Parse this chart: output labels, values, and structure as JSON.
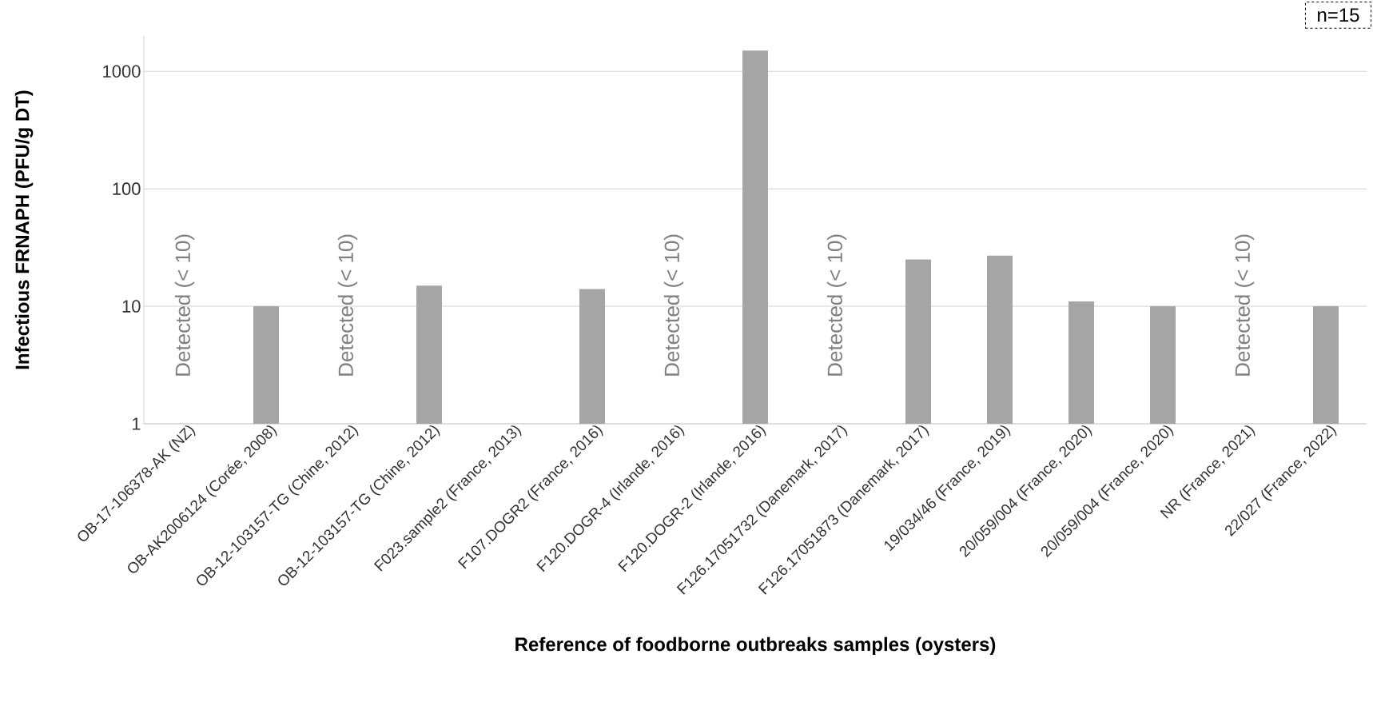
{
  "chart_data": {
    "type": "bar",
    "xlabel": "Reference of foodborne outbreaks samples (oysters)",
    "ylabel": "Infectious FRNAPH (PFU/g DT)",
    "categories": [
      "OB-17-106378-AK (NZ)",
      "OB-AK2006124 (Corée, 2008)",
      "OB-12-103157-TG (Chine, 2012)",
      "OB-12-103157-TG (Chine, 2012)",
      "F023.sample2 (France, 2013)",
      "F107.DOGR2 (France, 2016)",
      "F120.DOGR-4 (Irlande, 2016)",
      "F120.DOGR-2 (Irlande, 2016)",
      "F126.17051732 (Danemark, 2017)",
      "F126.17051873 (Danemark, 2017)",
      "19/034/46 (France, 2019)",
      "20/059/004 (France, 2020)",
      "20/059/004 (France, 2020)",
      "NR (France, 2021)",
      "22/027 (France, 2022)"
    ],
    "values": [
      null,
      10,
      null,
      15,
      null,
      14,
      null,
      1500,
      null,
      25,
      27,
      11,
      10,
      null,
      10
    ],
    "value_labels": [
      "Detected (< 10)",
      null,
      "Detected (< 10)",
      null,
      null,
      null,
      "Detected (< 10)",
      null,
      "Detected (< 10)",
      null,
      null,
      null,
      null,
      "Detected (< 10)",
      null
    ],
    "color": "#a5a5a5",
    "log": "y",
    "ylim": [
      1,
      2000
    ],
    "yticks": [
      1,
      10,
      100,
      1000
    ],
    "grid": "y",
    "annotations": [
      "n=15"
    ]
  }
}
